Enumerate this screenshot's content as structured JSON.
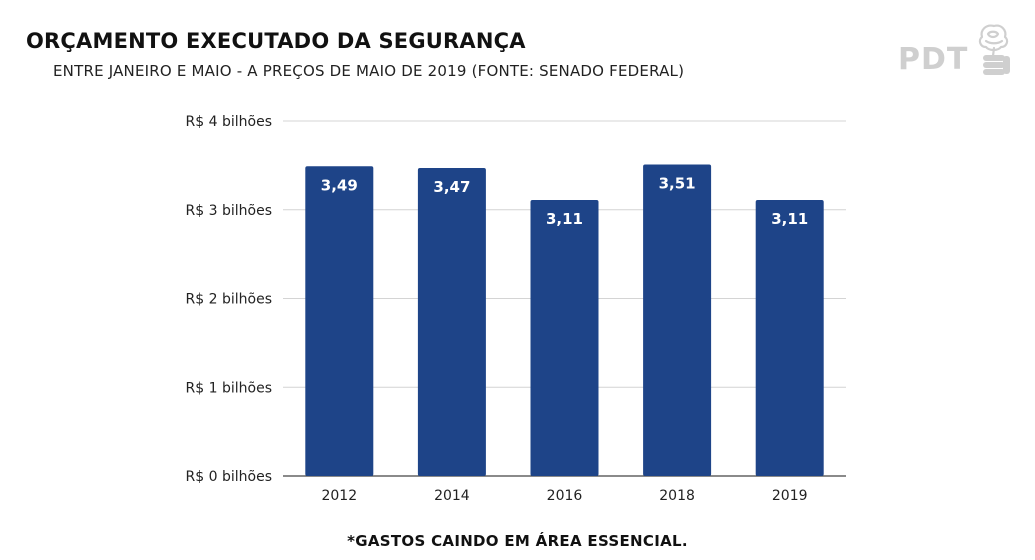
{
  "header": {
    "title": "ORÇAMENTO EXECUTADO DA SEGURANÇA",
    "subtitle": "ENTRE JANEIRO E MAIO - A PREÇOS DE MAIO DE 2019 (FONTE: SENADO FEDERAL)"
  },
  "logo": {
    "text": "PDT",
    "icon": "rose-in-fist-logo"
  },
  "footnote": "*GASTOS CAINDO EM ÁREA ESSENCIAL.",
  "colors": {
    "bar": "#1e4488",
    "bar_label": "#ffffff",
    "grid": "#d4d4d4",
    "axis_text": "#222222"
  },
  "chart_data": {
    "type": "bar",
    "categories": [
      "2012",
      "2014",
      "2016",
      "2018",
      "2019"
    ],
    "values": [
      3.49,
      3.47,
      3.11,
      3.51,
      3.11
    ],
    "data_labels": [
      "3,49",
      "3,47",
      "3,11",
      "3,51",
      "3,11"
    ],
    "title": "ORÇAMENTO EXECUTADO DA SEGURANÇA",
    "ylim": [
      0,
      4
    ],
    "yticks": [
      0,
      1,
      2,
      3,
      4
    ],
    "ytick_labels": [
      "R$ 0 bilhões",
      "R$ 1 bilhões",
      "R$ 2 bilhões",
      "R$ 3 bilhões",
      "R$ 4 bilhões"
    ],
    "grid": true,
    "legend": "none"
  }
}
